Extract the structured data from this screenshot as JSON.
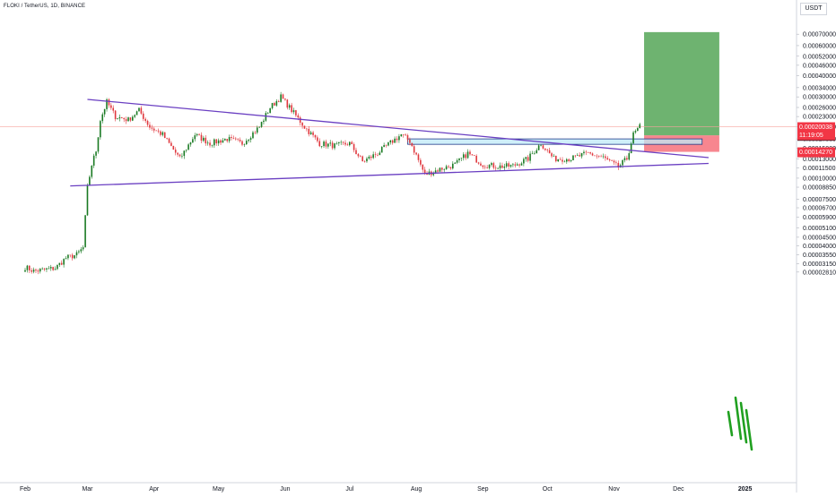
{
  "header": {
    "symbol_title": "FLOKI / TetherUS, 1D, BINANCE",
    "currency": "USDT"
  },
  "price_badges": {
    "current": {
      "price": "0.00020038",
      "countdown": "11:19:05",
      "color": "#f23645"
    },
    "entry": {
      "price": "0.00017826",
      "color": "#131722"
    },
    "stop": {
      "price": "0.00014270",
      "color": "#f23645"
    }
  },
  "chart_data": {
    "type": "candlestick",
    "symbol": "FLOKI / TetherUS",
    "interval": "1D",
    "exchange": "BINANCE",
    "y_scale": "log",
    "y_ticks": [
      "0.00070000",
      "0.00060000",
      "0.00052000",
      "0.00046000",
      "0.00040000",
      "0.00034000",
      "0.00030000",
      "0.00026000",
      "0.00023000",
      "0.00020000",
      "0.00017000",
      "0.00015000",
      "0.00013000",
      "0.00011500",
      "0.00010000",
      "0.00008850",
      "0.00007500",
      "0.00006700",
      "0.00005900",
      "0.00005100",
      "0.00004500",
      "0.00004000",
      "0.00003550",
      "0.00003150",
      "0.00002810"
    ],
    "x_ticks": [
      "Feb",
      "Mar",
      "Apr",
      "May",
      "Jun",
      "Jul",
      "Aug",
      "Sep",
      "Oct",
      "Nov",
      "Dec",
      "2025"
    ],
    "grid": false,
    "series": [
      {
        "values": [
          {
            "date": "2024-02-01",
            "close": 3e-05
          },
          {
            "date": "2024-02-05",
            "close": 2.85e-05
          },
          {
            "date": "2024-02-10",
            "close": 2.9e-05
          },
          {
            "date": "2024-02-15",
            "close": 2.96e-05
          },
          {
            "date": "2024-02-20",
            "close": 3.4e-05
          },
          {
            "date": "2024-02-25",
            "close": 3.55e-05
          },
          {
            "date": "2024-02-28",
            "close": 3.9e-05
          },
          {
            "date": "2024-03-01",
            "close": 8.8e-05
          },
          {
            "date": "2024-03-03",
            "close": 0.00012
          },
          {
            "date": "2024-03-05",
            "close": 0.000145
          },
          {
            "date": "2024-03-07",
            "close": 0.00022
          },
          {
            "date": "2024-03-10",
            "close": 0.00028
          },
          {
            "date": "2024-03-14",
            "close": 0.00023
          },
          {
            "date": "2024-03-20",
            "close": 0.00022
          },
          {
            "date": "2024-03-25",
            "close": 0.00025
          },
          {
            "date": "2024-03-30",
            "close": 0.0002
          },
          {
            "date": "2024-04-05",
            "close": 0.00018
          },
          {
            "date": "2024-04-13",
            "close": 0.00013
          },
          {
            "date": "2024-04-20",
            "close": 0.00018
          },
          {
            "date": "2024-04-27",
            "close": 0.00016
          },
          {
            "date": "2024-05-05",
            "close": 0.00017
          },
          {
            "date": "2024-05-12",
            "close": 0.00016
          },
          {
            "date": "2024-05-20",
            "close": 0.0002
          },
          {
            "date": "2024-05-25",
            "close": 0.00026
          },
          {
            "date": "2024-05-30",
            "close": 0.0003
          },
          {
            "date": "2024-06-03",
            "close": 0.00026
          },
          {
            "date": "2024-06-10",
            "close": 0.0002
          },
          {
            "date": "2024-06-17",
            "close": 0.00016
          },
          {
            "date": "2024-06-24",
            "close": 0.000155
          },
          {
            "date": "2024-07-01",
            "close": 0.00016
          },
          {
            "date": "2024-07-07",
            "close": 0.000125
          },
          {
            "date": "2024-07-14",
            "close": 0.00014
          },
          {
            "date": "2024-07-21",
            "close": 0.000165
          },
          {
            "date": "2024-07-25",
            "close": 0.00018
          },
          {
            "date": "2024-07-29",
            "close": 0.000165
          },
          {
            "date": "2024-08-05",
            "close": 0.000105
          },
          {
            "date": "2024-08-12",
            "close": 0.000113
          },
          {
            "date": "2024-08-19",
            "close": 0.00012
          },
          {
            "date": "2024-08-25",
            "close": 0.00014
          },
          {
            "date": "2024-09-01",
            "close": 0.00012
          },
          {
            "date": "2024-09-08",
            "close": 0.000117
          },
          {
            "date": "2024-09-15",
            "close": 0.000118
          },
          {
            "date": "2024-09-22",
            "close": 0.00013
          },
          {
            "date": "2024-09-28",
            "close": 0.00016
          },
          {
            "date": "2024-10-04",
            "close": 0.00013
          },
          {
            "date": "2024-10-12",
            "close": 0.00013
          },
          {
            "date": "2024-10-20",
            "close": 0.00014
          },
          {
            "date": "2024-10-27",
            "close": 0.000132
          },
          {
            "date": "2024-11-03",
            "close": 0.000116
          },
          {
            "date": "2024-11-07",
            "close": 0.00013
          },
          {
            "date": "2024-11-10",
            "close": 0.00018
          },
          {
            "date": "2024-11-13",
            "close": 0.0002
          }
        ]
      }
    ],
    "drawings": {
      "triangle_upper": {
        "start": {
          "date": "2024-03-01",
          "price": 0.00029
        },
        "end": {
          "date": "2024-12-15",
          "price": 0.000132
        }
      },
      "triangle_lower": {
        "start": {
          "date": "2024-02-22",
          "price": 9e-05
        },
        "end": {
          "date": "2024-12-15",
          "price": 0.000122
        }
      },
      "support_zone": {
        "start_date": "2024-07-28",
        "end_date": "2024-12-12",
        "top": 0.00017,
        "bottom": 0.000158
      },
      "long_position": {
        "start_date": "2024-11-15",
        "end_date": "2024-12-20",
        "entry": 0.00017826,
        "target": 0.00072,
        "stop": 0.0001427,
        "profit_color": "#3d9a40",
        "loss_color": "#f23645"
      }
    }
  }
}
